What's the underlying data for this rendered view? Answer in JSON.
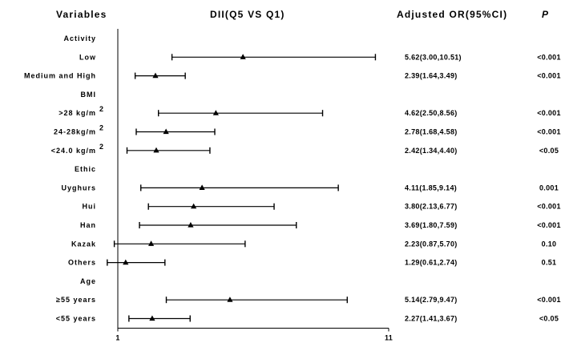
{
  "chart_data": {
    "type": "forest",
    "headers": {
      "variables": "Variables",
      "effect": "DII(Q5 VS Q1)",
      "or_ci": "Adjusted OR(95%CI)",
      "p": "P"
    },
    "x_axis": {
      "min": 1,
      "max": 11,
      "ticks": [
        "1",
        "11"
      ],
      "line_at": 1
    },
    "rows": [
      {
        "label": "Activity",
        "type": "header"
      },
      {
        "label": "Low",
        "type": "item",
        "or": 5.62,
        "lo": 3.0,
        "hi": 10.51,
        "or_text": "5.62(3.00,10.51)",
        "p": "<0.001"
      },
      {
        "label": "Medium and High",
        "type": "item",
        "or": 2.39,
        "lo": 1.64,
        "hi": 3.49,
        "or_text": "2.39(1.64,3.49)",
        "p": "<0.001"
      },
      {
        "label": "BMI",
        "type": "header"
      },
      {
        "label": ">28 kg/m",
        "sup": "2",
        "type": "item",
        "or": 4.62,
        "lo": 2.5,
        "hi": 8.56,
        "or_text": "4.62(2.50,8.56)",
        "p": "<0.001"
      },
      {
        "label": "24-28kg/m",
        "sup": "2",
        "type": "item",
        "or": 2.78,
        "lo": 1.68,
        "hi": 4.58,
        "or_text": "2.78(1.68,4.58)",
        "p": "<0.001"
      },
      {
        "label": "<24.0 kg/m",
        "sup": "2",
        "type": "item",
        "or": 2.42,
        "lo": 1.34,
        "hi": 4.4,
        "or_text": "2.42(1.34,4.40)",
        "p": "<0.05"
      },
      {
        "label": "Ethic",
        "type": "header"
      },
      {
        "label": "Uyghurs",
        "type": "item",
        "or": 4.11,
        "lo": 1.85,
        "hi": 9.14,
        "or_text": "4.11(1.85,9.14)",
        "p": "0.001"
      },
      {
        "label": "Hui",
        "type": "item",
        "or": 3.8,
        "lo": 2.13,
        "hi": 6.77,
        "or_text": "3.80(2.13,6.77)",
        "p": "<0.001"
      },
      {
        "label": "Han",
        "type": "item",
        "or": 3.69,
        "lo": 1.8,
        "hi": 7.59,
        "or_text": "3.69(1.80,7.59)",
        "p": "<0.001"
      },
      {
        "label": "Kazak",
        "type": "item",
        "or": 2.23,
        "lo": 0.87,
        "hi": 5.7,
        "or_text": "2.23(0.87,5.70)",
        "p": "0.10"
      },
      {
        "label": "Others",
        "type": "item",
        "or": 1.29,
        "lo": 0.61,
        "hi": 2.74,
        "or_text": "1.29(0.61,2.74)",
        "p": "0.51"
      },
      {
        "label": "Age",
        "type": "header"
      },
      {
        "label": "≥55 years",
        "type": "item",
        "or": 5.14,
        "lo": 2.79,
        "hi": 9.47,
        "or_text": "5.14(2.79,9.47)",
        "p": "<0.001"
      },
      {
        "label": "<55 years",
        "type": "item",
        "or": 2.27,
        "lo": 1.41,
        "hi": 3.67,
        "or_text": "2.27(1.41,3.67)",
        "p": "<0.05"
      }
    ]
  }
}
